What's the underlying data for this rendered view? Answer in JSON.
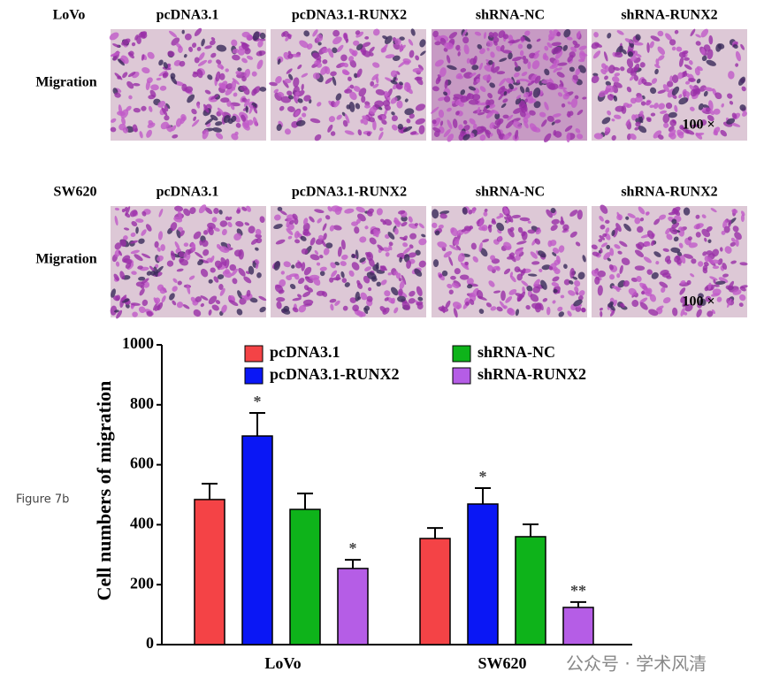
{
  "figure_label": "Figure 7b",
  "watermark": "公众号 · 学术风清",
  "panels": [
    {
      "cell_line": "LoVo",
      "row_label": "Migration",
      "columns": [
        "pcDNA3.1",
        "pcDNA3.1-RUNX2",
        "shRNA-NC",
        "shRNA-RUNX2"
      ],
      "magnification": "100 ×"
    },
    {
      "cell_line": "SW620",
      "row_label": "Migration",
      "columns": [
        "pcDNA3.1",
        "pcDNA3.1-RUNX2",
        "shRNA-NC",
        "shRNA-RUNX2"
      ],
      "magnification": "100 ×"
    }
  ],
  "chart_data": {
    "type": "bar",
    "y_label": "Cell numbers of migration",
    "categories": [
      "LoVo",
      "SW620"
    ],
    "series": [
      {
        "name": "pcDNA3.1",
        "color": "#f44346",
        "values": [
          484,
          354
        ],
        "errors": [
          53,
          35
        ]
      },
      {
        "name": "pcDNA3.1-RUNX2",
        "color": "#0a17f5",
        "values": [
          696,
          469
        ],
        "errors": [
          77,
          53
        ],
        "significance": [
          "*",
          "*"
        ]
      },
      {
        "name": "shRNA-NC",
        "color": "#0eb31a",
        "values": [
          451,
          360
        ],
        "errors": [
          53,
          41
        ]
      },
      {
        "name": "shRNA-RUNX2",
        "color": "#b55de6",
        "values": [
          254,
          124
        ],
        "errors": [
          29,
          18
        ],
        "significance": [
          "*",
          "**"
        ]
      }
    ],
    "ylim": [
      0,
      1000
    ],
    "yticks": [
      0,
      200,
      400,
      600,
      800,
      1000
    ],
    "legend": "top",
    "grid": false
  }
}
